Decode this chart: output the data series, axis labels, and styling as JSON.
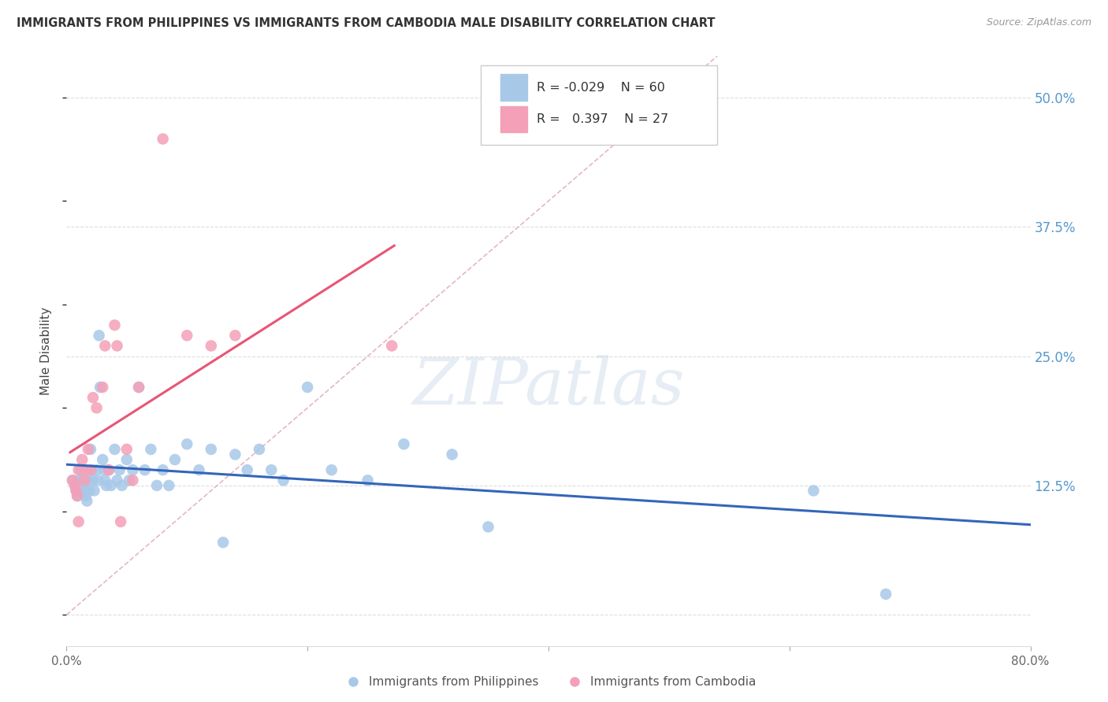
{
  "title": "IMMIGRANTS FROM PHILIPPINES VS IMMIGRANTS FROM CAMBODIA MALE DISABILITY CORRELATION CHART",
  "source": "Source: ZipAtlas.com",
  "ylabel": "Male Disability",
  "xlim": [
    0.0,
    0.8
  ],
  "ylim": [
    -0.03,
    0.54
  ],
  "legend_r_philippines": "-0.029",
  "legend_n_philippines": "60",
  "legend_r_cambodia": "0.397",
  "legend_n_cambodia": "27",
  "philippines_color": "#a8c8e8",
  "cambodia_color": "#f4a0b8",
  "philippines_line_color": "#3366bb",
  "cambodia_line_color": "#e85575",
  "diagonal_line_color": "#e0b0c0",
  "grid_color": "#dddddd",
  "background_color": "#ffffff",
  "ytick_positions": [
    0.0,
    0.125,
    0.25,
    0.375,
    0.5
  ],
  "ytick_labels": [
    "",
    "12.5%",
    "25.0%",
    "37.5%",
    "50.0%"
  ],
  "ytick_color": "#5599cc",
  "philippines_x": [
    0.005,
    0.007,
    0.008,
    0.009,
    0.01,
    0.01,
    0.012,
    0.013,
    0.014,
    0.015,
    0.015,
    0.016,
    0.017,
    0.018,
    0.019,
    0.02,
    0.021,
    0.022,
    0.023,
    0.025,
    0.026,
    0.027,
    0.028,
    0.03,
    0.031,
    0.032,
    0.033,
    0.035,
    0.037,
    0.04,
    0.042,
    0.044,
    0.046,
    0.05,
    0.052,
    0.055,
    0.06,
    0.065,
    0.07,
    0.075,
    0.08,
    0.085,
    0.09,
    0.1,
    0.11,
    0.12,
    0.13,
    0.14,
    0.15,
    0.16,
    0.17,
    0.18,
    0.2,
    0.22,
    0.25,
    0.28,
    0.32,
    0.35,
    0.62,
    0.68
  ],
  "philippines_y": [
    0.13,
    0.125,
    0.12,
    0.115,
    0.13,
    0.12,
    0.14,
    0.13,
    0.125,
    0.13,
    0.12,
    0.115,
    0.11,
    0.13,
    0.12,
    0.16,
    0.14,
    0.13,
    0.12,
    0.14,
    0.13,
    0.27,
    0.22,
    0.15,
    0.14,
    0.13,
    0.125,
    0.14,
    0.125,
    0.16,
    0.13,
    0.14,
    0.125,
    0.15,
    0.13,
    0.14,
    0.22,
    0.14,
    0.16,
    0.125,
    0.14,
    0.125,
    0.15,
    0.165,
    0.14,
    0.16,
    0.07,
    0.155,
    0.14,
    0.16,
    0.14,
    0.13,
    0.22,
    0.14,
    0.13,
    0.165,
    0.155,
    0.085,
    0.12,
    0.02
  ],
  "cambodia_x": [
    0.005,
    0.007,
    0.008,
    0.009,
    0.01,
    0.01,
    0.013,
    0.015,
    0.016,
    0.018,
    0.02,
    0.022,
    0.025,
    0.03,
    0.032,
    0.035,
    0.04,
    0.042,
    0.045,
    0.05,
    0.055,
    0.06,
    0.08,
    0.1,
    0.12,
    0.14,
    0.27
  ],
  "cambodia_y": [
    0.13,
    0.125,
    0.12,
    0.115,
    0.14,
    0.09,
    0.15,
    0.13,
    0.14,
    0.16,
    0.14,
    0.21,
    0.2,
    0.22,
    0.26,
    0.14,
    0.28,
    0.26,
    0.09,
    0.16,
    0.13,
    0.22,
    0.46,
    0.27,
    0.26,
    0.27,
    0.26
  ]
}
